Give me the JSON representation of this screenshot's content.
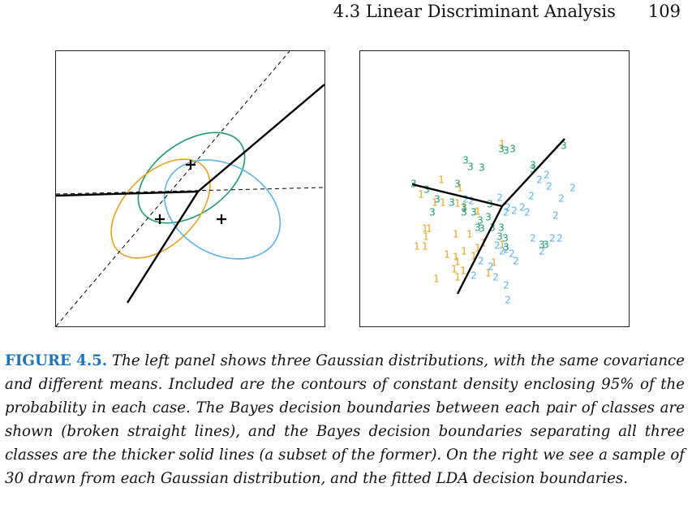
{
  "header": {
    "section": "4.3 Linear Discriminant Analysis",
    "page_number": "109"
  },
  "colors": {
    "class1": "#e6a21b",
    "class2": "#5db3e3",
    "class3": "#1e9a72",
    "boundary": "#000000"
  },
  "figure": {
    "label": "FIGURE 4.5.",
    "caption": "The left panel shows three Gaussian distributions, with the same covariance and different means. Included are the contours of constant density enclosing 95% of the probability in each case. The Bayes decision boundaries between each pair of classes are shown (broken straight lines), and the Bayes decision boundaries separating all three classes are the thicker solid lines (a subset of the former). On the right we see a sample of 30 drawn from each Gaussian distribution, and the fitted LDA decision boundaries."
  },
  "chart_data": [
    {
      "type": "scatter",
      "panel": "left",
      "xlim": [
        0,
        331
      ],
      "ylim": [
        0,
        339
      ],
      "means": [
        {
          "class": "1",
          "x": 128,
          "y": 132
        },
        {
          "class": "2",
          "x": 204,
          "y": 132
        },
        {
          "class": "3",
          "x": 166,
          "y": 199
        }
      ],
      "ellipses": [
        {
          "class": "3",
          "cx": 167,
          "cy": 183,
          "rx": 74,
          "ry": 44,
          "angle": -35
        },
        {
          "class": "1",
          "cx": 129,
          "cy": 145,
          "rx": 74,
          "ry": 44,
          "angle": -45
        },
        {
          "class": "2",
          "cx": 205,
          "cy": 144,
          "rx": 76,
          "ry": 55,
          "angle": 30
        }
      ],
      "bayes_pairwise": [
        {
          "x1": 0,
          "y1": 0,
          "x2": 288,
          "y2": 339
        },
        {
          "x1": 0,
          "y1": 163,
          "x2": 331,
          "y2": 171
        }
      ],
      "bayes_final": [
        {
          "x1": 175,
          "y1": 166,
          "x2": 0,
          "y2": 161
        },
        {
          "x1": 175,
          "y1": 166,
          "x2": 331,
          "y2": 298
        },
        {
          "x1": 175,
          "y1": 166,
          "x2": 88,
          "y2": 29
        }
      ]
    },
    {
      "type": "scatter",
      "panel": "right",
      "xlim": [
        0,
        331
      ],
      "ylim": [
        0,
        339
      ],
      "lda_boundaries": [
        {
          "x1": 175,
          "y1": 148,
          "x2": 64,
          "y2": 175
        },
        {
          "x1": 175,
          "y1": 148,
          "x2": 252,
          "y2": 231
        },
        {
          "x1": 175,
          "y1": 148,
          "x2": 120,
          "y2": 40
        }
      ],
      "points": [
        {
          "label": "1",
          "x": 175,
          "y": 224
        },
        {
          "label": "1",
          "x": 100,
          "y": 180
        },
        {
          "label": "1",
          "x": 123,
          "y": 170
        },
        {
          "label": "1",
          "x": 75,
          "y": 162
        },
        {
          "label": "1",
          "x": 92,
          "y": 152
        },
        {
          "label": "1",
          "x": 102,
          "y": 152
        },
        {
          "label": "1",
          "x": 120,
          "y": 151
        },
        {
          "label": "1",
          "x": 128,
          "y": 145
        },
        {
          "label": "1",
          "x": 145,
          "y": 141
        },
        {
          "label": "1",
          "x": 85,
          "y": 120
        },
        {
          "label": "1",
          "x": 81,
          "y": 110
        },
        {
          "label": "1",
          "x": 118,
          "y": 113
        },
        {
          "label": "1",
          "x": 135,
          "y": 113
        },
        {
          "label": "1",
          "x": 70,
          "y": 98
        },
        {
          "label": "1",
          "x": 80,
          "y": 98
        },
        {
          "label": "1",
          "x": 128,
          "y": 92
        },
        {
          "label": "1",
          "x": 140,
          "y": 86
        },
        {
          "label": "1",
          "x": 118,
          "y": 85
        },
        {
          "label": "1",
          "x": 116,
          "y": 70
        },
        {
          "label": "1",
          "x": 127,
          "y": 68
        },
        {
          "label": "1",
          "x": 120,
          "y": 60
        },
        {
          "label": "1",
          "x": 94,
          "y": 58
        },
        {
          "label": "1",
          "x": 165,
          "y": 78
        },
        {
          "label": "1",
          "x": 120,
          "y": 79
        },
        {
          "label": "1",
          "x": 107,
          "y": 88
        },
        {
          "label": "1",
          "x": 145,
          "y": 96
        },
        {
          "label": "1",
          "x": 152,
          "y": 102
        },
        {
          "label": "1",
          "x": 158,
          "y": 65
        },
        {
          "label": "1",
          "x": 175,
          "y": 100
        },
        {
          "label": "1",
          "x": 80,
          "y": 120
        },
        {
          "label": "2",
          "x": 182,
          "y": 32
        },
        {
          "label": "2",
          "x": 180,
          "y": 50
        },
        {
          "label": "2",
          "x": 167,
          "y": 60
        },
        {
          "label": "2",
          "x": 140,
          "y": 62
        },
        {
          "label": "2",
          "x": 161,
          "y": 73
        },
        {
          "label": "2",
          "x": 192,
          "y": 80
        },
        {
          "label": "2",
          "x": 149,
          "y": 80
        },
        {
          "label": "2",
          "x": 175,
          "y": 92
        },
        {
          "label": "2",
          "x": 180,
          "y": 94
        },
        {
          "label": "2",
          "x": 187,
          "y": 89
        },
        {
          "label": "2",
          "x": 169,
          "y": 99
        },
        {
          "label": "2",
          "x": 213,
          "y": 108
        },
        {
          "label": "2",
          "x": 224,
          "y": 92
        },
        {
          "label": "2",
          "x": 237,
          "y": 108
        },
        {
          "label": "2",
          "x": 246,
          "y": 108
        },
        {
          "label": "2",
          "x": 241,
          "y": 136
        },
        {
          "label": "2",
          "x": 206,
          "y": 140
        },
        {
          "label": "2",
          "x": 200,
          "y": 146
        },
        {
          "label": "2",
          "x": 190,
          "y": 142
        },
        {
          "label": "2",
          "x": 180,
          "y": 140
        },
        {
          "label": "2",
          "x": 182,
          "y": 146
        },
        {
          "label": "2",
          "x": 137,
          "y": 154
        },
        {
          "label": "2",
          "x": 130,
          "y": 156
        },
        {
          "label": "2",
          "x": 172,
          "y": 158
        },
        {
          "label": "2",
          "x": 211,
          "y": 160
        },
        {
          "label": "2",
          "x": 248,
          "y": 157
        },
        {
          "label": "2",
          "x": 221,
          "y": 180
        },
        {
          "label": "2",
          "x": 230,
          "y": 186
        },
        {
          "label": "2",
          "x": 262,
          "y": 170
        },
        {
          "label": "2",
          "x": 233,
          "y": 172
        },
        {
          "label": "3",
          "x": 66,
          "y": 175
        },
        {
          "label": "3",
          "x": 82,
          "y": 168
        },
        {
          "label": "3",
          "x": 89,
          "y": 140
        },
        {
          "label": "3",
          "x": 95,
          "y": 156
        },
        {
          "label": "3",
          "x": 113,
          "y": 152
        },
        {
          "label": "3",
          "x": 128,
          "y": 146
        },
        {
          "label": "3",
          "x": 128,
          "y": 140
        },
        {
          "label": "3",
          "x": 140,
          "y": 140
        },
        {
          "label": "3",
          "x": 148,
          "y": 130
        },
        {
          "label": "3",
          "x": 158,
          "y": 134
        },
        {
          "label": "3",
          "x": 145,
          "y": 121
        },
        {
          "label": "3",
          "x": 163,
          "y": 121
        },
        {
          "label": "3",
          "x": 174,
          "y": 121
        },
        {
          "label": "3",
          "x": 172,
          "y": 110
        },
        {
          "label": "3",
          "x": 179,
          "y": 108
        },
        {
          "label": "3",
          "x": 180,
          "y": 97
        },
        {
          "label": "3",
          "x": 150,
          "y": 120
        },
        {
          "label": "3",
          "x": 130,
          "y": 204
        },
        {
          "label": "3",
          "x": 136,
          "y": 196
        },
        {
          "label": "3",
          "x": 150,
          "y": 195
        },
        {
          "label": "3",
          "x": 174,
          "y": 218
        },
        {
          "label": "3",
          "x": 180,
          "y": 216
        },
        {
          "label": "3",
          "x": 188,
          "y": 218
        },
        {
          "label": "3",
          "x": 213,
          "y": 198
        },
        {
          "label": "3",
          "x": 213,
          "y": 193
        },
        {
          "label": "3",
          "x": 224,
          "y": 100
        },
        {
          "label": "3",
          "x": 229,
          "y": 100
        },
        {
          "label": "3",
          "x": 251,
          "y": 222
        },
        {
          "label": "3",
          "x": 160,
          "y": 150
        },
        {
          "label": "3",
          "x": 120,
          "y": 175
        }
      ]
    }
  ]
}
